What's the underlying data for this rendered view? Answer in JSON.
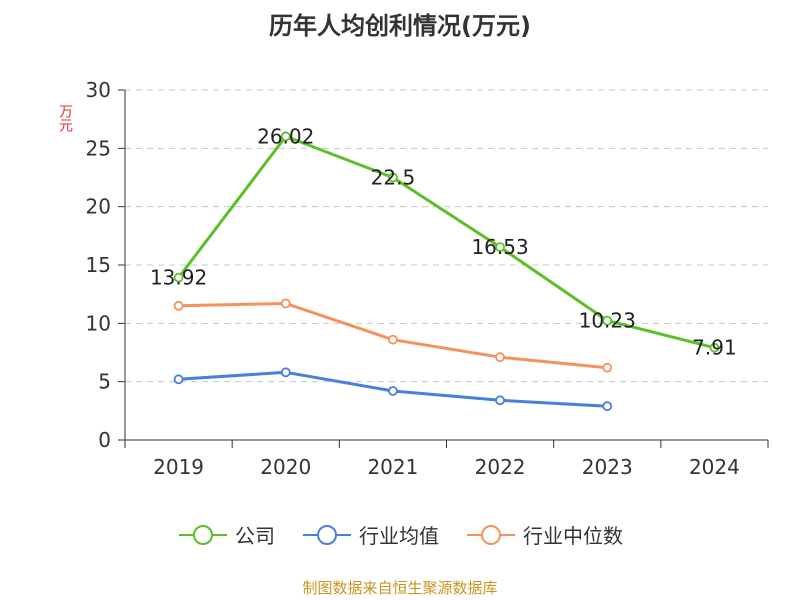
{
  "chart_data": {
    "type": "line",
    "title": "历年人均创利情况(万元)",
    "ylabel": "万元",
    "xlabel": "",
    "categories": [
      "2019",
      "2020",
      "2021",
      "2022",
      "2023",
      "2024"
    ],
    "ylim": [
      0,
      30
    ],
    "yticks": [
      0,
      5,
      10,
      15,
      20,
      25,
      30
    ],
    "grid": true,
    "legend_position": "bottom",
    "series": [
      {
        "name": "公司",
        "color": "#5ac026",
        "values": [
          13.92,
          26.02,
          22.5,
          16.53,
          10.23,
          7.91
        ],
        "labels": [
          "13.92",
          "26.02",
          "22.5",
          "16.53",
          "10.23",
          "7.91"
        ]
      },
      {
        "name": "行业均值",
        "color": "#4a7fdc",
        "values": [
          5.2,
          5.8,
          4.2,
          3.4,
          2.9,
          null
        ]
      },
      {
        "name": "行业中位数",
        "color": "#f5915a",
        "values": [
          11.5,
          11.7,
          8.6,
          7.1,
          6.2,
          null
        ]
      }
    ]
  },
  "footer": {
    "source": "制图数据来自恒生聚源数据库"
  }
}
